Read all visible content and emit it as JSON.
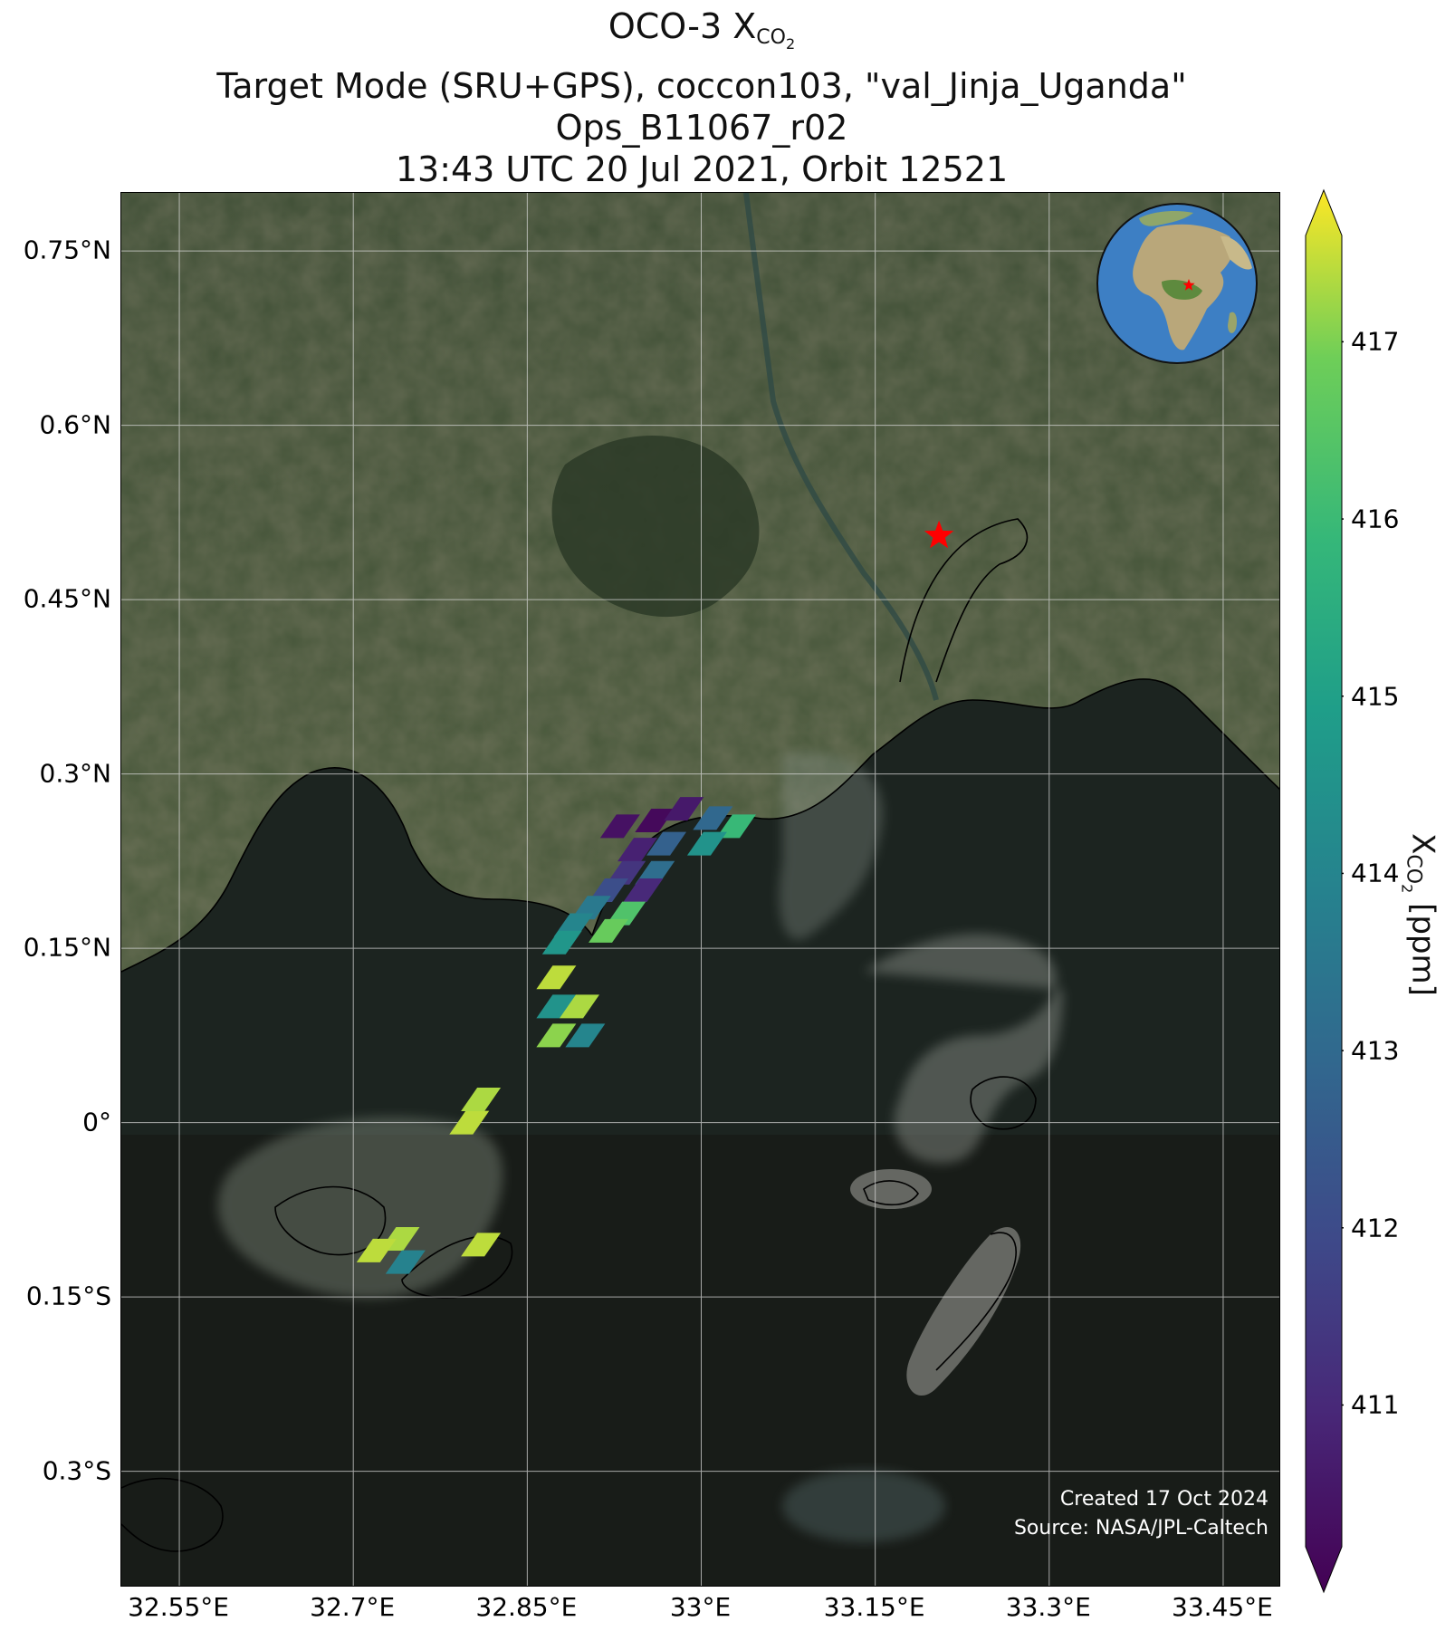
{
  "title": {
    "line1_prefix": "OCO-3 X",
    "line1_sub": "CO",
    "line1_sub2": "2",
    "line2": "Target Mode (SRU+GPS), coccon103, \"val_Jinja_Uganda\"",
    "line3": "Ops_B11067_r02",
    "line4": "13:43 UTC 20 Jul 2021, Orbit 12521"
  },
  "credits": {
    "created": "Created 17 Oct 2024",
    "source": "Source: NASA/JPL-Caltech"
  },
  "map": {
    "lon_range": [
      32.5,
      33.5
    ],
    "lat_range": [
      -0.4,
      0.8
    ],
    "lat_ticks": [
      {
        "value": 0.75,
        "label": "0.75°N"
      },
      {
        "value": 0.6,
        "label": "0.6°N"
      },
      {
        "value": 0.45,
        "label": "0.45°N"
      },
      {
        "value": 0.3,
        "label": "0.3°N"
      },
      {
        "value": 0.15,
        "label": "0.15°N"
      },
      {
        "value": 0.0,
        "label": "0°"
      },
      {
        "value": -0.15,
        "label": "0.15°S"
      },
      {
        "value": -0.3,
        "label": "0.3°S"
      }
    ],
    "lon_ticks": [
      {
        "value": 32.55,
        "label": "32.55°E"
      },
      {
        "value": 32.7,
        "label": "32.7°E"
      },
      {
        "value": 32.85,
        "label": "32.85°E"
      },
      {
        "value": 33.0,
        "label": "33°E"
      },
      {
        "value": 33.15,
        "label": "33.15°E"
      },
      {
        "value": 33.3,
        "label": "33.3°E"
      },
      {
        "value": 33.45,
        "label": "33.45°E"
      }
    ],
    "target_marker": {
      "lon": 33.205,
      "lat": 0.505,
      "color": "#ff0000"
    },
    "soundings": [
      {
        "lon": 32.93,
        "lat": 0.255,
        "xco2": 410.6
      },
      {
        "lon": 32.96,
        "lat": 0.26,
        "xco2": 410.4
      },
      {
        "lon": 32.985,
        "lat": 0.27,
        "xco2": 410.8
      },
      {
        "lon": 33.01,
        "lat": 0.262,
        "xco2": 413.0
      },
      {
        "lon": 33.03,
        "lat": 0.255,
        "xco2": 415.8
      },
      {
        "lon": 32.945,
        "lat": 0.235,
        "xco2": 411.0
      },
      {
        "lon": 32.97,
        "lat": 0.24,
        "xco2": 412.8
      },
      {
        "lon": 33.005,
        "lat": 0.24,
        "xco2": 414.5
      },
      {
        "lon": 32.935,
        "lat": 0.215,
        "xco2": 411.5
      },
      {
        "lon": 32.96,
        "lat": 0.215,
        "xco2": 413.2
      },
      {
        "lon": 32.92,
        "lat": 0.2,
        "xco2": 412.2
      },
      {
        "lon": 32.95,
        "lat": 0.2,
        "xco2": 411.2
      },
      {
        "lon": 32.905,
        "lat": 0.185,
        "xco2": 413.6
      },
      {
        "lon": 32.935,
        "lat": 0.18,
        "xco2": 416.2
      },
      {
        "lon": 32.89,
        "lat": 0.17,
        "xco2": 414.0
      },
      {
        "lon": 32.92,
        "lat": 0.165,
        "xco2": 416.6
      },
      {
        "lon": 32.88,
        "lat": 0.155,
        "xco2": 414.6
      },
      {
        "lon": 32.875,
        "lat": 0.125,
        "xco2": 417.2
      },
      {
        "lon": 32.875,
        "lat": 0.1,
        "xco2": 414.5
      },
      {
        "lon": 32.895,
        "lat": 0.1,
        "xco2": 417.1
      },
      {
        "lon": 32.875,
        "lat": 0.075,
        "xco2": 416.9
      },
      {
        "lon": 32.9,
        "lat": 0.075,
        "xco2": 414.0
      },
      {
        "lon": 32.8,
        "lat": 0.0,
        "xco2": 417.2
      },
      {
        "lon": 32.81,
        "lat": 0.02,
        "xco2": 417.1
      },
      {
        "lon": 32.74,
        "lat": -0.1,
        "xco2": 417.1
      },
      {
        "lon": 32.72,
        "lat": -0.11,
        "xco2": 417.2
      },
      {
        "lon": 32.745,
        "lat": -0.12,
        "xco2": 413.9
      },
      {
        "lon": 32.81,
        "lat": -0.105,
        "xco2": 417.2
      }
    ]
  },
  "colorbar": {
    "label_prefix": "X",
    "label_sub": "CO",
    "label_sub2": "2",
    "label_suffix": " [ppm]",
    "min": 410.2,
    "max": 417.6,
    "ticks": [
      "411",
      "412",
      "413",
      "414",
      "415",
      "416",
      "417"
    ],
    "colormap": "viridis"
  }
}
